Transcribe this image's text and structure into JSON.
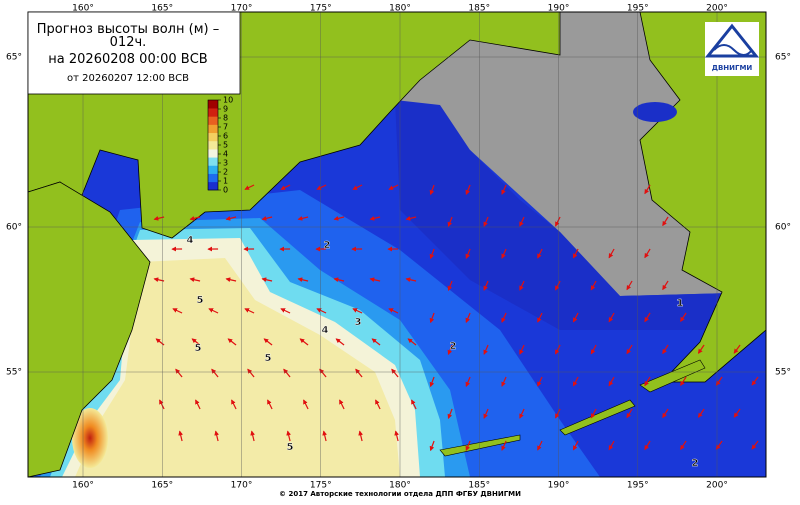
{
  "header": {
    "title_lines": [
      "Прогноз высоты волн (м) –",
      "012ч.",
      "на 20260208 00:00 ВСВ",
      "от 20260207 12:00 ВСВ"
    ]
  },
  "logo": {
    "text": "ДВНИГМИ"
  },
  "colorbar": {
    "lim": [
      0,
      10
    ],
    "ticks": [
      0,
      1,
      2,
      3,
      4,
      5,
      6,
      7,
      8,
      9,
      10
    ],
    "colors": [
      "#1a2fd0",
      "#1e6cf0",
      "#2fb0f0",
      "#7fe0f0",
      "#f4f6e0",
      "#f4ea98",
      "#f4d060",
      "#f0a030",
      "#e86020",
      "#d02010",
      "#a00000"
    ]
  },
  "longitude": [
    {
      "value": 160,
      "label": "160°"
    },
    {
      "value": 165,
      "label": "165°"
    },
    {
      "value": 170,
      "label": "170°"
    },
    {
      "value": 175,
      "label": "175°"
    },
    {
      "value": 180,
      "label": "180°"
    },
    {
      "value": 185,
      "label": "185°"
    },
    {
      "value": 190,
      "label": "190°"
    },
    {
      "value": 195,
      "label": "195°"
    },
    {
      "value": 200,
      "label": "200°"
    }
  ],
  "latitude": [
    {
      "value": 65,
      "label": "65°"
    },
    {
      "value": 60,
      "label": "60°"
    },
    {
      "value": 55,
      "label": "55°"
    }
  ],
  "contour_labels": [
    "4",
    "5",
    "5",
    "5",
    "4",
    "3",
    "2",
    "2",
    "1",
    "2",
    "5"
  ],
  "footer": "© 2017 Авторские технологии отдела ДПП ФГБУ ДВНИГМИ"
}
